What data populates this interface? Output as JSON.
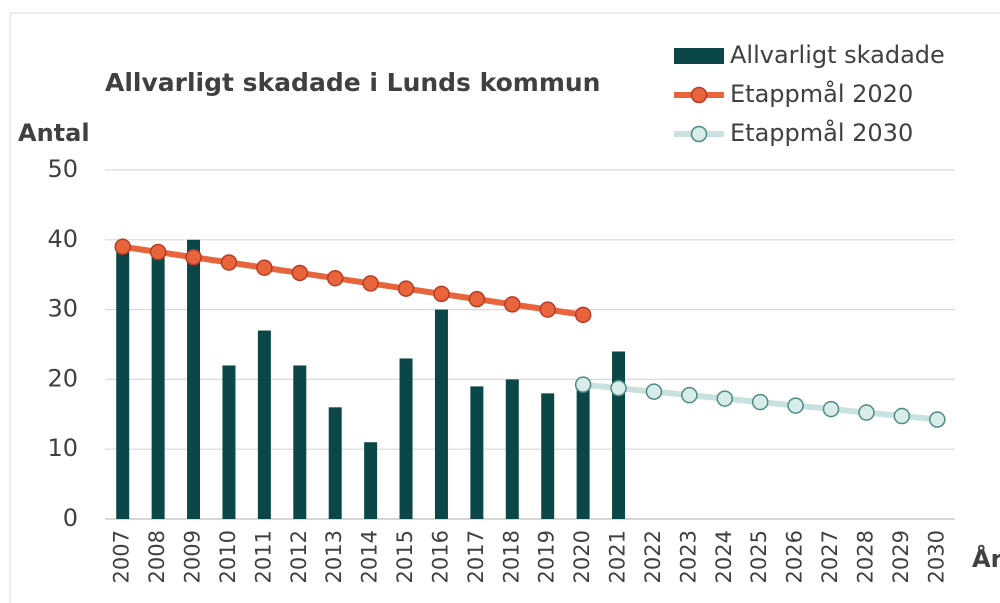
{
  "chart_data": {
    "type": "bar_line",
    "title": "Allvarligt skadade i Lunds kommun",
    "y_label": "Antal",
    "x_label": "År",
    "categories": [
      "2007",
      "2008",
      "2009",
      "2010",
      "2011",
      "2012",
      "2013",
      "2014",
      "2015",
      "2016",
      "2017",
      "2018",
      "2019",
      "2020",
      "2021",
      "2022",
      "2023",
      "2024",
      "2025",
      "2026",
      "2027",
      "2028",
      "2029",
      "2030"
    ],
    "series": [
      {
        "name": "Allvarligt skadade",
        "type": "bar",
        "color": "#0b4747",
        "values": [
          39,
          38,
          40,
          22,
          27,
          22,
          16,
          11,
          23,
          30,
          19,
          20,
          18,
          19,
          24,
          null,
          null,
          null,
          null,
          null,
          null,
          null,
          null,
          null
        ]
      },
      {
        "name": "Etappmål 2020",
        "type": "line",
        "color": "#e8653c",
        "marker_color": "#b83a26",
        "values": [
          39,
          38.25,
          37.5,
          36.75,
          36,
          35.25,
          34.5,
          33.75,
          33,
          32.25,
          31.5,
          30.75,
          30,
          29.25,
          null,
          null,
          null,
          null,
          null,
          null,
          null,
          null,
          null,
          null
        ]
      },
      {
        "name": "Etappmål 2030",
        "type": "line",
        "color": "#c9e1df",
        "marker_color": "#4f8a86",
        "values": [
          null,
          null,
          null,
          null,
          null,
          null,
          null,
          null,
          null,
          null,
          null,
          null,
          null,
          19.25,
          18.75,
          18.25,
          17.75,
          17.25,
          16.75,
          16.25,
          15.75,
          15.25,
          14.75,
          14.25
        ]
      }
    ],
    "ylim": [
      0,
      50
    ],
    "yticks": [
      0,
      10,
      20,
      30,
      40,
      50
    ],
    "grid": true,
    "legend": "top-right"
  }
}
